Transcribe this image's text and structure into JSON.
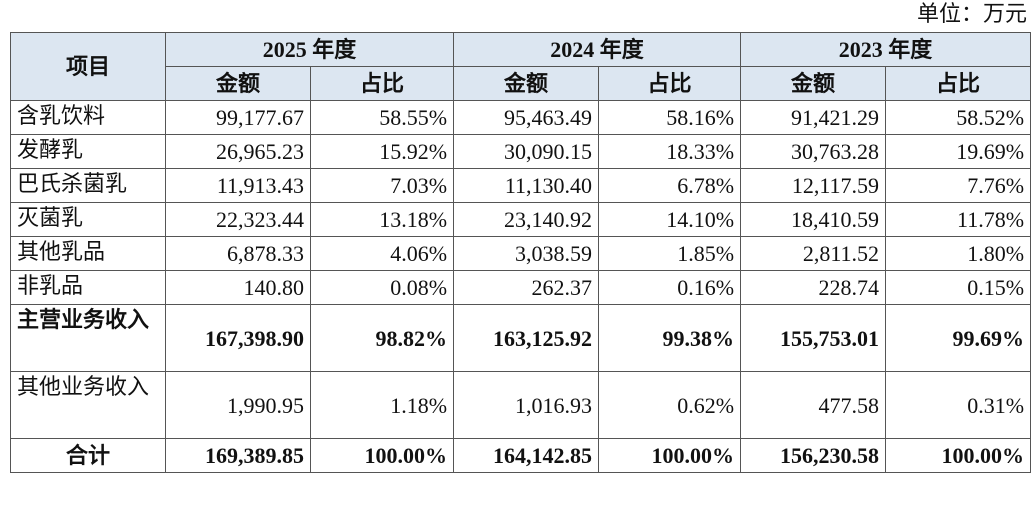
{
  "unit": "单位：万元",
  "table": {
    "item_header": "项目",
    "years": [
      {
        "label": "2025 年度",
        "columns": [
          "金额",
          "占比"
        ]
      },
      {
        "label": "2024 年度",
        "columns": [
          "金额",
          "占比"
        ]
      },
      {
        "label": "2023 年度",
        "columns": [
          "金额",
          "占比"
        ]
      }
    ],
    "rows": [
      {
        "name": "含乳饮料",
        "cells": [
          "99,177.67",
          "58.55%",
          "95,463.49",
          "58.16%",
          "91,421.29",
          "58.52%"
        ]
      },
      {
        "name": "发酵乳",
        "cells": [
          "26,965.23",
          "15.92%",
          "30,090.15",
          "18.33%",
          "30,763.28",
          "19.69%"
        ]
      },
      {
        "name": "巴氏杀菌乳",
        "cells": [
          "11,913.43",
          "7.03%",
          "11,130.40",
          "6.78%",
          "12,117.59",
          "7.76%"
        ]
      },
      {
        "name": "灭菌乳",
        "cells": [
          "22,323.44",
          "13.18%",
          "23,140.92",
          "14.10%",
          "18,410.59",
          "11.78%"
        ]
      },
      {
        "name": "其他乳品",
        "cells": [
          "6,878.33",
          "4.06%",
          "3,038.59",
          "1.85%",
          "2,811.52",
          "1.80%"
        ]
      },
      {
        "name": "非乳品",
        "cells": [
          "140.80",
          "0.08%",
          "262.37",
          "0.16%",
          "228.74",
          "0.15%"
        ]
      },
      {
        "name": "主营业务收入",
        "bold": true,
        "cells": [
          "167,398.90",
          "98.82%",
          "163,125.92",
          "99.38%",
          "155,753.01",
          "99.69%"
        ]
      },
      {
        "name": "其他业务收入",
        "cells": [
          "1,990.95",
          "1.18%",
          "1,016.93",
          "0.62%",
          "477.58",
          "0.31%"
        ]
      },
      {
        "name": "合计",
        "bold": true,
        "center": true,
        "cells": [
          "169,389.85",
          "100.00%",
          "164,142.85",
          "100.00%",
          "156,230.58",
          "100.00%"
        ]
      }
    ]
  }
}
